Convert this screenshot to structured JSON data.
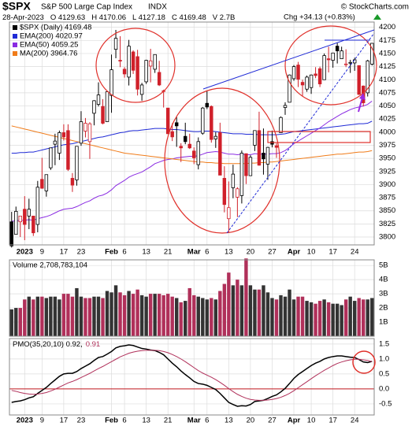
{
  "header": {
    "symbol": "$SPX",
    "name": "S&P 500 Large Cap Index",
    "exchange": "INDX",
    "source": "© StockCharts.com",
    "date": "28-Apr-2023",
    "quote": [
      "O 4129.63",
      "H 4170.06",
      "L 4127.18",
      "C 4169.48",
      "V 2.7B"
    ],
    "change": "Chg +34.13 (+0.83%)"
  },
  "chart_data": [
    {
      "type": "candlestick",
      "title": "$SPX (Daily) 4169.48",
      "color": "#000000",
      "up_color": "#000000",
      "down_color": "#d0202a",
      "grid": true,
      "categories": [
        null,
        null,
        null,
        "2023",
        null,
        null,
        null,
        "9",
        null,
        null,
        null,
        null,
        "17",
        null,
        null,
        null,
        "23",
        null,
        null,
        null,
        null,
        null,
        null,
        "Feb",
        null,
        null,
        "6",
        null,
        null,
        null,
        null,
        "13",
        null,
        null,
        null,
        null,
        "21",
        null,
        null,
        null,
        null,
        null,
        "Mar",
        null,
        null,
        "6",
        null,
        null,
        null,
        null,
        "13",
        null,
        null,
        null,
        null,
        "20",
        null,
        null,
        null,
        null,
        "27",
        null,
        null,
        null,
        null,
        "Apr",
        null,
        null,
        null,
        "10",
        null,
        null,
        null,
        null,
        "17",
        null,
        null,
        null,
        null,
        "24",
        null,
        null,
        null,
        null
      ],
      "open": [
        3829,
        3805,
        3829,
        3853,
        3840,
        3840,
        3824,
        3910,
        3888,
        3932,
        3977,
        3960,
        3999,
        4003,
        3912,
        3909,
        3979,
        4002,
        3982,
        4036,
        4053,
        4049,
        4020,
        4070,
        4158,
        4137,
        4120,
        4105,
        4153,
        4144,
        4072,
        4096,
        4126,
        4120,
        4114,
        4078,
        4046,
        4001,
        4018,
        3973,
        3992,
        3977,
        3964,
        3938,
        3998,
        4055,
        4049,
        3987,
        3999,
        3912,
        3835,
        3894,
        3876,
        3879,
        3959,
        3917,
        3975,
        4003,
        3960,
        3939,
        3982,
        3974,
        3999,
        4047,
        4057,
        4102,
        4128,
        4095,
        4082,
        4085,
        4111,
        4121,
        4100,
        4140,
        4137,
        4164,
        4140,
        4130,
        4132,
        4132,
        4127,
        4088,
        4075,
        4129.63
      ],
      "high": [
        3848,
        3858,
        3839,
        3878,
        3873,
        3840,
        3907,
        3951,
        3919,
        3970,
        3997,
        4003,
        4015,
        4015,
        3922,
        3973,
        4040,
        4027,
        4019,
        4061,
        4095,
        4063,
        4077,
        4148,
        4195,
        4183,
        4124,
        4176,
        4156,
        4157,
        4094,
        4138,
        4159,
        4148,
        4136,
        4081,
        4046,
        4017,
        4029,
        3979,
        4018,
        3997,
        3971,
        3990,
        4048,
        4079,
        4051,
        4000,
        4018,
        3935,
        3906,
        3938,
        3895,
        3965,
        3959,
        3956,
        4003,
        4039,
        4007,
        3972,
        4003,
        3979,
        4030,
        4057,
        4110,
        4128,
        4134,
        4100,
        4108,
        4110,
        4124,
        4125,
        4150,
        4163,
        4151,
        4170,
        4163,
        4158,
        4138,
        4142,
        4127,
        4089,
        4138,
        4170.06
      ],
      "low": [
        3780,
        3805,
        3800,
        3794,
        3815,
        3802,
        3809,
        3892,
        3877,
        3928,
        3937,
        3947,
        3984,
        3926,
        3886,
        3898,
        3974,
        3990,
        3949,
        4013,
        4049,
        4015,
        4021,
        4037,
        4141,
        4124,
        4104,
        4089,
        4111,
        4070,
        4060,
        4092,
        4095,
        4113,
        4088,
        4047,
        3997,
        3983,
        3972,
        3943,
        3977,
        3968,
        3939,
        3929,
        3995,
        4044,
        3980,
        3970,
        3918,
        3847,
        3809,
        3874,
        3838,
        3864,
        3901,
        3917,
        3964,
        3936,
        3919,
        3909,
        3971,
        3951,
        3999,
        4033,
        4057,
        4098,
        4086,
        4069,
        4077,
        4073,
        4103,
        4086,
        4100,
        4114,
        4123,
        4131,
        4140,
        4124,
        4113,
        4117,
        4071,
        4049,
        4068,
        4127.18
      ],
      "close": [
        3783,
        3849,
        3840,
        3824,
        3853,
        3808,
        3895,
        3893,
        3919,
        3970,
        3983,
        3999,
        3991,
        3929,
        3899,
        3973,
        4020,
        4017,
        4016,
        4060,
        4071,
        4017,
        4077,
        4119,
        4179,
        4136,
        4111,
        4164,
        4118,
        4082,
        4090,
        4137,
        4136,
        4148,
        4090,
        4079,
        3997,
        3991,
        4012,
        3970,
        3982,
        3970,
        3951,
        3982,
        4046,
        4048,
        3986,
        3992,
        3918,
        3862,
        3856,
        3920,
        3892,
        3960,
        3917,
        3952,
        4003,
        3937,
        3949,
        3971,
        3977,
        3971,
        4028,
        4051,
        4109,
        4125,
        4101,
        4090,
        4105,
        4109,
        4108,
        4092,
        4146,
        4138,
        4151,
        4155,
        4155,
        4130,
        4133,
        4138,
        4072,
        4056,
        4136,
        4169.48
      ],
      "series": [
        {
          "name": "EMA(200) 4020.97",
          "color": "#1f2ad6",
          "values": [
            3960,
            3960,
            3961,
            3961,
            3962,
            3962,
            3964,
            3966,
            3968,
            3970,
            3972,
            3974,
            3976,
            3977,
            3978,
            3980,
            3982,
            3984,
            3986,
            3988,
            3990,
            3991,
            3993,
            3995,
            3997,
            3999,
            4000,
            4002,
            4003,
            4003,
            4004,
            4005,
            4006,
            4007,
            4007,
            4007,
            4006,
            4005,
            4005,
            4004,
            4003,
            4002,
            4001,
            4001,
            4002,
            4002,
            4002,
            4001,
            4000,
            3999,
            3998,
            3997,
            3997,
            3997,
            3996,
            3996,
            3996,
            3995,
            3995,
            3995,
            3995,
            3995,
            3996,
            3997,
            3999,
            4001,
            4002,
            4003,
            4004,
            4005,
            4006,
            4007,
            4008,
            4009,
            4010,
            4011,
            4012,
            4013,
            4014,
            4015,
            4016,
            4016,
            4017,
            4020.97
          ]
        },
        {
          "name": "EMA(50) 4059.25",
          "color": "#8a2be2",
          "values": [
            3830,
            3831,
            3832,
            3832,
            3833,
            3832,
            3835,
            3837,
            3839,
            3842,
            3846,
            3850,
            3853,
            3854,
            3855,
            3858,
            3862,
            3866,
            3869,
            3874,
            3878,
            3880,
            3884,
            3890,
            3898,
            3903,
            3908,
            3914,
            3918,
            3921,
            3924,
            3929,
            3934,
            3940,
            3943,
            3946,
            3948,
            3949,
            3951,
            3952,
            3953,
            3954,
            3954,
            3955,
            3958,
            3961,
            3962,
            3963,
            3962,
            3960,
            3958,
            3958,
            3957,
            3958,
            3957,
            3957,
            3959,
            3958,
            3958,
            3958,
            3959,
            3959,
            3961,
            3965,
            3971,
            3978,
            3983,
            3988,
            3993,
            3998,
            4003,
            4008,
            4014,
            4020,
            4025,
            4030,
            4035,
            4039,
            4043,
            4046,
            4048,
            4050,
            4053,
            4059.25
          ]
        },
        {
          "name": "MA(200) 3964.76",
          "color": "#f07c1a",
          "values": [
            4012,
            4010,
            4008,
            4006,
            4004,
            4002,
            4000,
            3998,
            3996,
            3994,
            3992,
            3990,
            3988,
            3986,
            3984,
            3982,
            3980,
            3978,
            3976,
            3974,
            3972,
            3970,
            3968,
            3966,
            3964,
            3962,
            3960,
            3959,
            3958,
            3957,
            3956,
            3955,
            3954,
            3953,
            3952,
            3951,
            3950,
            3949,
            3948,
            3947,
            3946,
            3945,
            3944,
            3943,
            3943,
            3942,
            3942,
            3941,
            3941,
            3940,
            3940,
            3940,
            3940,
            3940,
            3940,
            3941,
            3941,
            3942,
            3942,
            3943,
            3943,
            3944,
            3945,
            3946,
            3947,
            3948,
            3949,
            3950,
            3951,
            3952,
            3953,
            3954,
            3955,
            3956,
            3957,
            3958,
            3958,
            3959,
            3960,
            3961,
            3962,
            3962,
            3963,
            3964.76
          ]
        }
      ],
      "ylim": [
        3785,
        4210
      ],
      "yticks": [
        3800,
        3825,
        3850,
        3875,
        3900,
        3925,
        3950,
        3975,
        4000,
        4025,
        4050,
        4075,
        4100,
        4125,
        4150,
        4175,
        4200
      ]
    },
    {
      "type": "bar",
      "title": "Volume 2,708,783,104",
      "up_color": "#333333",
      "down_color": "#b0305a",
      "values": [
        1.9,
        2.0,
        2.0,
        2.6,
        2.8,
        2.6,
        2.8,
        2.8,
        2.7,
        2.8,
        2.8,
        2.6,
        3.0,
        3.0,
        2.8,
        3.4,
        2.8,
        2.7,
        2.7,
        2.8,
        2.8,
        2.7,
        3.2,
        3.1,
        3.6,
        3.1,
        2.9,
        3.2,
        3.0,
        3.3,
        2.9,
        2.8,
        3.0,
        3.0,
        3.0,
        2.9,
        3.0,
        2.8,
        2.7,
        2.4,
        2.5,
        3.4,
        2.9,
        2.8,
        2.7,
        2.6,
        2.7,
        2.6,
        3.2,
        3.7,
        4.5,
        3.6,
        4.0,
        3.6,
        5.5,
        3.6,
        3.3,
        3.3,
        3.6,
        3.1,
        2.7,
        2.6,
        2.9,
        2.8,
        3.3,
        2.6,
        2.8,
        2.8,
        2.5,
        2.4,
        2.3,
        2.5,
        2.6,
        2.4,
        2.3,
        2.3,
        2.2,
        2.6,
        2.8,
        2.5,
        2.7,
        2.6,
        2.6,
        2.7
      ],
      "ylim": [
        0,
        5.4
      ],
      "yticks": [
        {
          "value": 1,
          "label": "1B"
        },
        {
          "value": 2,
          "label": "2B"
        },
        {
          "value": 3,
          "label": "3B"
        },
        {
          "value": 4,
          "label": "4B"
        },
        {
          "value": 5,
          "label": "5B"
        }
      ],
      "grid": true
    },
    {
      "type": "line",
      "title": "PMO(35,20,10) 0.92,",
      "signal_label": "0.91",
      "zero_color": "#c0181f",
      "grid": true,
      "categories": [
        null,
        null,
        null,
        "2023",
        null,
        null,
        null,
        "9",
        null,
        null,
        null,
        null,
        "17",
        null,
        null,
        null,
        "23",
        null,
        null,
        null,
        null,
        null,
        null,
        "Feb",
        null,
        null,
        "6",
        null,
        null,
        null,
        null,
        "13",
        null,
        null,
        null,
        null,
        "21",
        null,
        null,
        null,
        null,
        null,
        "Mar",
        null,
        null,
        "6",
        null,
        null,
        null,
        null,
        "13",
        null,
        null,
        null,
        null,
        "20",
        null,
        null,
        null,
        null,
        "27",
        null,
        null,
        null,
        null,
        "Apr",
        null,
        null,
        null,
        "10",
        null,
        null,
        null,
        null,
        "17",
        null,
        null,
        null,
        null,
        "24",
        null,
        null,
        null,
        null
      ],
      "series": [
        {
          "color": "#000000",
          "values": [
            -0.45,
            -0.42,
            -0.4,
            -0.36,
            -0.3,
            -0.26,
            -0.15,
            -0.05,
            0.05,
            0.18,
            0.3,
            0.42,
            0.5,
            0.52,
            0.52,
            0.58,
            0.68,
            0.76,
            0.84,
            0.95,
            1.05,
            1.08,
            1.16,
            1.25,
            1.37,
            1.42,
            1.44,
            1.47,
            1.45,
            1.4,
            1.35,
            1.33,
            1.3,
            1.28,
            1.22,
            1.14,
            1.0,
            0.86,
            0.74,
            0.6,
            0.48,
            0.37,
            0.25,
            0.18,
            0.16,
            0.12,
            0.05,
            -0.02,
            -0.15,
            -0.3,
            -0.45,
            -0.52,
            -0.58,
            -0.56,
            -0.57,
            -0.52,
            -0.42,
            -0.4,
            -0.38,
            -0.32,
            -0.25,
            -0.2,
            -0.1,
            0.02,
            0.18,
            0.35,
            0.48,
            0.58,
            0.68,
            0.78,
            0.86,
            0.92,
            1.0,
            1.05,
            1.08,
            1.1,
            1.1,
            1.08,
            1.06,
            1.05,
            0.98,
            0.9,
            0.88,
            0.92
          ]
        },
        {
          "color": "#b0305a",
          "values": [
            -0.05,
            -0.08,
            -0.12,
            -0.15,
            -0.17,
            -0.18,
            -0.17,
            -0.15,
            -0.12,
            -0.07,
            -0.01,
            0.06,
            0.13,
            0.2,
            0.25,
            0.31,
            0.38,
            0.45,
            0.52,
            0.6,
            0.68,
            0.75,
            0.83,
            0.91,
            0.99,
            1.07,
            1.13,
            1.19,
            1.23,
            1.26,
            1.28,
            1.29,
            1.29,
            1.29,
            1.28,
            1.25,
            1.21,
            1.15,
            1.08,
            1.0,
            0.91,
            0.81,
            0.71,
            0.61,
            0.53,
            0.46,
            0.39,
            0.31,
            0.22,
            0.12,
            0.01,
            -0.09,
            -0.18,
            -0.25,
            -0.31,
            -0.35,
            -0.37,
            -0.38,
            -0.38,
            -0.37,
            -0.35,
            -0.32,
            -0.28,
            -0.22,
            -0.15,
            -0.06,
            0.04,
            0.14,
            0.24,
            0.34,
            0.44,
            0.53,
            0.62,
            0.7,
            0.78,
            0.85,
            0.9,
            0.94,
            0.97,
            0.99,
            0.99,
            0.97,
            0.95,
            0.91
          ]
        }
      ],
      "ylim": [
        -0.87,
        1.68
      ],
      "yticks": [
        -0.5,
        {
          "value": 0,
          "label": "0.0"
        },
        0.5,
        {
          "value": 1,
          "label": "1.0"
        },
        1.5
      ]
    }
  ]
}
